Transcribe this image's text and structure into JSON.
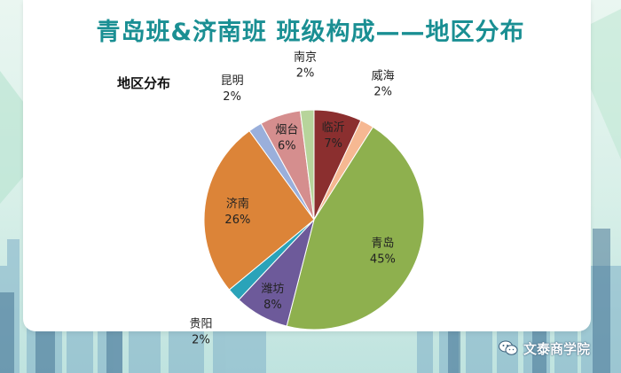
{
  "title": "青岛班&济南班 班级构成——地区分布",
  "watermark": "文泰商学院",
  "colors": {
    "title": "#1a8f93",
    "background": "#d7efe8"
  },
  "chart_data": {
    "type": "pie",
    "title": "地区分布",
    "slices": [
      {
        "label": "临沂",
        "value": 7,
        "display": "7%",
        "color": "#8b2f2f"
      },
      {
        "label": "威海",
        "value": 2,
        "display": "2%",
        "color": "#f6b892"
      },
      {
        "label": "青岛",
        "value": 45,
        "display": "45%",
        "color": "#8eb04e"
      },
      {
        "label": "潍坊",
        "value": 8,
        "display": "8%",
        "color": "#6d5a9a"
      },
      {
        "label": "贵阳",
        "value": 2,
        "display": "2%",
        "color": "#2aa3b9"
      },
      {
        "label": "济南",
        "value": 26,
        "display": "26%",
        "color": "#dc8438"
      },
      {
        "label": "昆明",
        "value": 2,
        "display": "2%",
        "color": "#9aafdb"
      },
      {
        "label": "烟台",
        "value": 6,
        "display": "6%",
        "color": "#d58e8e"
      },
      {
        "label": "南京",
        "value": 2,
        "display": "2%",
        "color": "#b7d49b"
      }
    ],
    "legend": "none"
  }
}
